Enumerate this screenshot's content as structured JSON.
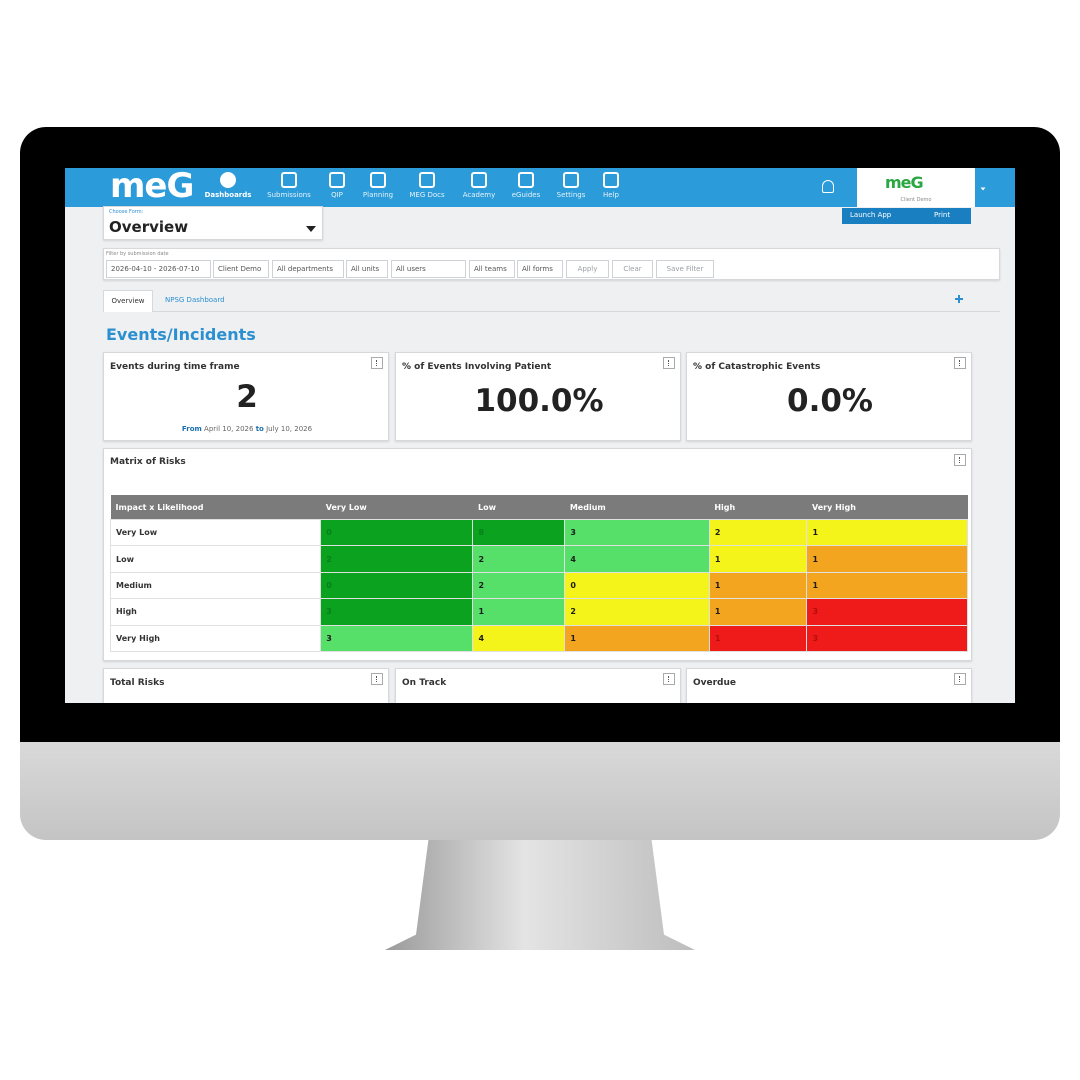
{
  "nav": {
    "logo": "meG",
    "items": [
      "Dashboards",
      "Submissions",
      "QIP",
      "Planning",
      "MEG Docs",
      "Academy",
      "eGuides",
      "Settings",
      "Help"
    ],
    "account": {
      "logo": "meG",
      "client": "Client Demo"
    }
  },
  "form_selector": {
    "label": "Choose Form:",
    "value": "Overview"
  },
  "actions": [
    "Launch App",
    "Print"
  ],
  "filters": {
    "label": "Filter by submission date",
    "date_range": "2026-04-10 - 2026-07-10",
    "controls": [
      "Client Demo",
      "All departments",
      "All units",
      "All users",
      "All teams",
      "All forms"
    ],
    "buttons": [
      "Apply",
      "Clear",
      "Save Filter"
    ]
  },
  "tabs": [
    "Overview",
    "NPSG Dashboard"
  ],
  "section_title": "Events/Incidents",
  "cards": [
    {
      "title": "Events during time frame",
      "value": "2",
      "from_label": "From",
      "from": "April 10, 2026",
      "to_label": "to",
      "to": "July 10, 2026"
    },
    {
      "title": "% of Events Involving Patient",
      "value": "100.0%"
    },
    {
      "title": "% of Catastrophic Events",
      "value": "0.0%"
    }
  ],
  "matrix": {
    "title": "Matrix of Risks",
    "corner": "Impact x Likelihood",
    "columns": [
      "Very Low",
      "Low",
      "Medium",
      "High",
      "Very High"
    ],
    "rows": [
      {
        "label": "Very Low",
        "cells": [
          0,
          8,
          3,
          2,
          1
        ],
        "colors": [
          "#0aa21f",
          "#0aa21f",
          "#56e06a",
          "#f4f41a",
          "#f4f41a"
        ]
      },
      {
        "label": "Low",
        "cells": [
          2,
          2,
          4,
          1,
          1
        ],
        "colors": [
          "#0aa21f",
          "#56e06a",
          "#56e06a",
          "#f4f41a",
          "#f4a51f"
        ]
      },
      {
        "label": "Medium",
        "cells": [
          0,
          2,
          0,
          1,
          1
        ],
        "colors": [
          "#0aa21f",
          "#56e06a",
          "#f4f41a",
          "#f4a51f",
          "#f4a51f"
        ]
      },
      {
        "label": "High",
        "cells": [
          3,
          1,
          2,
          1,
          3
        ],
        "colors": [
          "#0aa21f",
          "#56e06a",
          "#f4f41a",
          "#f4a51f",
          "#ef1a1a"
        ]
      },
      {
        "label": "Very High",
        "cells": [
          3,
          4,
          1,
          1,
          3
        ],
        "colors": [
          "#56e06a",
          "#f4f41a",
          "#f4a51f",
          "#ef1a1a",
          "#ef1a1a"
        ]
      }
    ]
  },
  "bottom_cards": [
    "Total Risks",
    "On Track",
    "Overdue"
  ]
}
